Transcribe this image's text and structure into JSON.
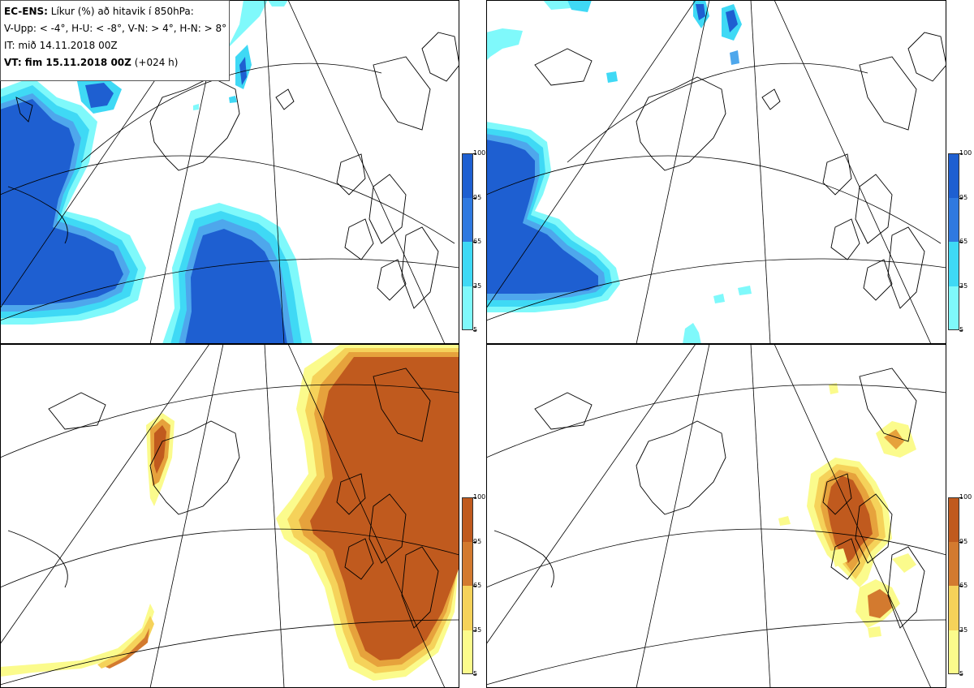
{
  "header": {
    "line1_bold": "EC-ENS:",
    "line1_rest": "Líkur (%) að hitavik í 850hPa:",
    "line2": "V-Upp: < -4°, H-U: < -8°, V-N: > 4°, H-N: > 8°",
    "line3": "IT: mið 14.11.2018 00Z",
    "line4_bold": "VT: fim 15.11.2018 00Z",
    "line4_rest": "(+024 h)"
  },
  "colorbar_labels": [
    "100",
    "95",
    "65",
    "35",
    "5"
  ],
  "colors": {
    "cold_scale": [
      "#7ff9fb",
      "#3fd9f5",
      "#4ea7ec",
      "#2f79e0",
      "#1e5fd1"
    ],
    "warm_scale": [
      "#fbfb8c",
      "#f5d25a",
      "#e6a23c",
      "#d37a2f",
      "#c05a1e"
    ],
    "coast": "#000000",
    "graticule": "#000000"
  },
  "panels": [
    {
      "id": "v-upp",
      "meaning": "V-Upp"
    },
    {
      "id": "h-u",
      "meaning": "H-U"
    },
    {
      "id": "v-n",
      "meaning": "V-N"
    },
    {
      "id": "h-n",
      "meaning": "H-N"
    }
  ]
}
